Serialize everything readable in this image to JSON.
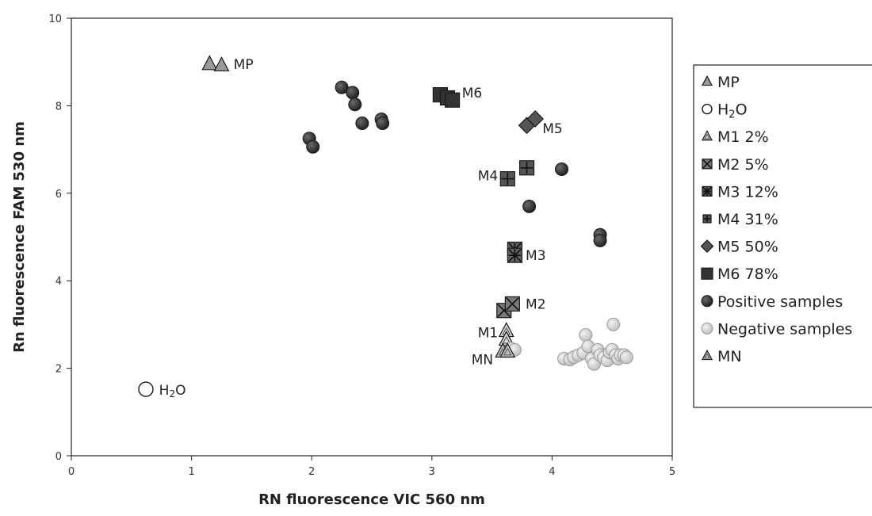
{
  "chart_data": {
    "type": "scatter",
    "xlabel": "RN fluorescence VIC 560 nm",
    "ylabel": "Rn fluorescence FAM 530 nm",
    "xlim": [
      0,
      5
    ],
    "ylim": [
      0,
      10
    ],
    "xticks": [
      0,
      1,
      2,
      3,
      4,
      5
    ],
    "yticks": [
      0,
      2,
      4,
      6,
      8,
      10
    ],
    "grid": false,
    "legend_position": "right",
    "series": [
      {
        "name": "MP",
        "marker": "triangle",
        "fill": "#9a9a9a",
        "points": [
          [
            1.15,
            8.95
          ],
          [
            1.25,
            8.92
          ]
        ]
      },
      {
        "name": "H2O",
        "marker": "circle-open",
        "fill": "#ffffff",
        "points": [
          [
            0.62,
            1.52
          ]
        ]
      },
      {
        "name": "M1 2%",
        "marker": "triangle-open",
        "fill": "#d4d4d4",
        "points": [
          [
            3.62,
            2.85
          ],
          [
            3.62,
            2.65
          ]
        ]
      },
      {
        "name": "M2 5%",
        "marker": "square-x",
        "fill": "#7a7a7a",
        "points": [
          [
            3.6,
            3.32
          ],
          [
            3.67,
            3.47
          ]
        ]
      },
      {
        "name": "M3 12%",
        "marker": "square-star",
        "fill": "#606060",
        "points": [
          [
            3.69,
            4.72
          ],
          [
            3.69,
            4.58
          ]
        ]
      },
      {
        "name": "M4 31%",
        "marker": "square-plus",
        "fill": "#555555",
        "points": [
          [
            3.63,
            6.33
          ],
          [
            3.79,
            6.58
          ]
        ]
      },
      {
        "name": "M5 50%",
        "marker": "diamond",
        "fill": "#555555",
        "points": [
          [
            3.79,
            7.55
          ],
          [
            3.86,
            7.7
          ]
        ]
      },
      {
        "name": "M6 78%",
        "marker": "square",
        "fill": "#333333",
        "points": [
          [
            3.07,
            8.25
          ],
          [
            3.13,
            8.18
          ],
          [
            3.17,
            8.13
          ]
        ]
      },
      {
        "name": "Positive samples",
        "marker": "circle",
        "fill": "#2a2a2a",
        "points": [
          [
            1.98,
            7.25
          ],
          [
            2.01,
            7.06
          ],
          [
            2.25,
            8.42
          ],
          [
            2.34,
            8.3
          ],
          [
            2.36,
            8.03
          ],
          [
            2.42,
            7.6
          ],
          [
            2.58,
            7.69
          ],
          [
            2.59,
            7.6
          ],
          [
            4.08,
            6.55
          ],
          [
            3.81,
            5.7
          ],
          [
            4.4,
            5.05
          ],
          [
            4.4,
            4.92
          ]
        ]
      },
      {
        "name": "Negative samples",
        "marker": "circle",
        "fill": "#d0d0d0",
        "points": [
          [
            4.1,
            2.22
          ],
          [
            4.15,
            2.2
          ],
          [
            4.18,
            2.25
          ],
          [
            4.22,
            2.3
          ],
          [
            4.26,
            2.35
          ],
          [
            4.28,
            2.76
          ],
          [
            4.3,
            2.5
          ],
          [
            4.33,
            2.22
          ],
          [
            4.35,
            2.1
          ],
          [
            4.38,
            2.42
          ],
          [
            4.4,
            2.3
          ],
          [
            4.43,
            2.25
          ],
          [
            4.46,
            2.18
          ],
          [
            4.48,
            2.36
          ],
          [
            4.5,
            2.42
          ],
          [
            4.51,
            3.0
          ],
          [
            4.53,
            2.3
          ],
          [
            4.55,
            2.22
          ],
          [
            4.57,
            2.3
          ],
          [
            4.6,
            2.3
          ],
          [
            4.62,
            2.25
          ],
          [
            3.66,
            2.45
          ],
          [
            3.69,
            2.42
          ]
        ]
      },
      {
        "name": "MN",
        "marker": "triangle-open",
        "fill": "#bdbdbd",
        "points": [
          [
            3.59,
            2.38
          ],
          [
            3.63,
            2.38
          ]
        ]
      }
    ],
    "annotations": [
      {
        "text": "MP",
        "x": 1.35,
        "y": 8.95,
        "anchor": "start"
      },
      {
        "text": "M6",
        "x": 3.25,
        "y": 8.3,
        "anchor": "start"
      },
      {
        "text": "M5",
        "x": 3.92,
        "y": 7.48,
        "anchor": "start"
      },
      {
        "text": "M4",
        "x": 3.55,
        "y": 6.4,
        "anchor": "end"
      },
      {
        "text": "M3",
        "x": 3.78,
        "y": 4.58,
        "anchor": "start"
      },
      {
        "text": "M2",
        "x": 3.78,
        "y": 3.47,
        "anchor": "start"
      },
      {
        "text": "M1",
        "x": 3.55,
        "y": 2.82,
        "anchor": "end"
      },
      {
        "text": "MN",
        "x": 3.51,
        "y": 2.2,
        "anchor": "end"
      },
      {
        "text": "H2O",
        "x": 0.73,
        "y": 1.5,
        "anchor": "start",
        "subscript": true
      }
    ]
  }
}
